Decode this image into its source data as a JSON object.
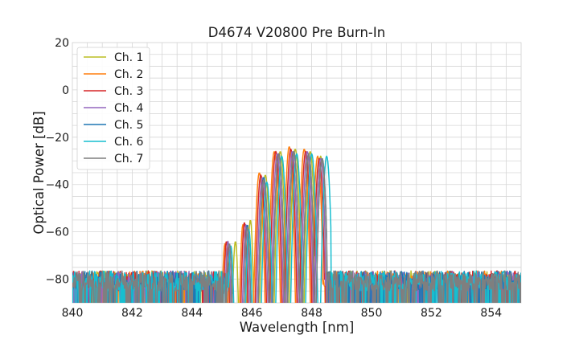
{
  "chart_data": {
    "type": "line",
    "title": "D4674 V20800 Pre Burn-In",
    "xlabel": "Wavelength [nm]",
    "ylabel": "Optical Power [dB]",
    "xlim": [
      840,
      855
    ],
    "ylim": [
      -90,
      20
    ],
    "grid": true,
    "legend_position": "top-left",
    "x_major_ticks": [
      840,
      842,
      844,
      846,
      848,
      850,
      852,
      854
    ],
    "x_tick_labels": [
      "840",
      "842",
      "844",
      "846",
      "848",
      "850",
      "852",
      "854"
    ],
    "y_major_ticks": [
      20,
      0,
      -20,
      -40,
      -60,
      -80
    ],
    "y_tick_labels": [
      "20",
      "0",
      "−20",
      "−40",
      "−60",
      "−80"
    ],
    "x_minor_step": 0.5,
    "y_minor_step": 5,
    "noise_floor": {
      "mean": -80,
      "spread": 5
    },
    "series": [
      {
        "name": "Ch. 1",
        "color": "#bcbd22",
        "spectrum": {
          "start": 845.35,
          "end": 848.45,
          "peaks": [
            {
              "x": 845.45,
              "y": -64
            },
            {
              "x": 845.95,
              "y": -55
            },
            {
              "x": 846.45,
              "y": -36
            },
            {
              "x": 846.95,
              "y": -26
            },
            {
              "x": 847.45,
              "y": -25
            },
            {
              "x": 847.95,
              "y": -26
            },
            {
              "x": 848.3,
              "y": -28
            }
          ]
        }
      },
      {
        "name": "Ch. 2",
        "color": "#ff7f0e",
        "spectrum": {
          "start": 845.0,
          "end": 848.35,
          "peaks": [
            {
              "x": 845.1,
              "y": -65
            },
            {
              "x": 845.7,
              "y": -57
            },
            {
              "x": 846.25,
              "y": -35
            },
            {
              "x": 846.75,
              "y": -26
            },
            {
              "x": 847.25,
              "y": -24
            },
            {
              "x": 847.75,
              "y": -25
            },
            {
              "x": 848.2,
              "y": -28
            }
          ]
        }
      },
      {
        "name": "Ch. 3",
        "color": "#d62728",
        "spectrum": {
          "start": 845.05,
          "end": 848.4,
          "peaks": [
            {
              "x": 845.15,
              "y": -64
            },
            {
              "x": 845.75,
              "y": -56
            },
            {
              "x": 846.3,
              "y": -36
            },
            {
              "x": 846.8,
              "y": -26
            },
            {
              "x": 847.3,
              "y": -25
            },
            {
              "x": 847.8,
              "y": -26
            },
            {
              "x": 848.25,
              "y": -29
            }
          ]
        }
      },
      {
        "name": "Ch. 4",
        "color": "#9467bd",
        "spectrum": {
          "start": 845.1,
          "end": 848.45,
          "peaks": [
            {
              "x": 845.2,
              "y": -64
            },
            {
              "x": 845.8,
              "y": -57
            },
            {
              "x": 846.35,
              "y": -37
            },
            {
              "x": 846.85,
              "y": -27
            },
            {
              "x": 847.35,
              "y": -26
            },
            {
              "x": 847.85,
              "y": -26
            },
            {
              "x": 848.3,
              "y": -29
            }
          ]
        }
      },
      {
        "name": "Ch. 5",
        "color": "#1f77b4",
        "spectrum": {
          "start": 845.15,
          "end": 848.5,
          "peaks": [
            {
              "x": 845.25,
              "y": -65
            },
            {
              "x": 845.85,
              "y": -57
            },
            {
              "x": 846.4,
              "y": -37
            },
            {
              "x": 846.9,
              "y": -27
            },
            {
              "x": 847.4,
              "y": -26
            },
            {
              "x": 847.9,
              "y": -27
            },
            {
              "x": 848.35,
              "y": -29
            }
          ]
        }
      },
      {
        "name": "Ch. 6",
        "color": "#17becf",
        "spectrum": {
          "start": 845.2,
          "end": 848.65,
          "peaks": [
            {
              "x": 845.3,
              "y": -66
            },
            {
              "x": 845.9,
              "y": -59
            },
            {
              "x": 846.5,
              "y": -39
            },
            {
              "x": 847.0,
              "y": -28
            },
            {
              "x": 847.5,
              "y": -27
            },
            {
              "x": 848.0,
              "y": -27
            },
            {
              "x": 848.5,
              "y": -28
            }
          ]
        }
      },
      {
        "name": "Ch. 7",
        "color": "#7f7f7f",
        "spectrum": {
          "start": 845.15,
          "end": 848.5,
          "peaks": [
            {
              "x": 845.25,
              "y": -65
            },
            {
              "x": 845.85,
              "y": -58
            },
            {
              "x": 846.4,
              "y": -38
            },
            {
              "x": 846.9,
              "y": -27
            },
            {
              "x": 847.4,
              "y": -26
            },
            {
              "x": 847.9,
              "y": -27
            },
            {
              "x": 848.35,
              "y": -29
            }
          ]
        }
      }
    ]
  }
}
